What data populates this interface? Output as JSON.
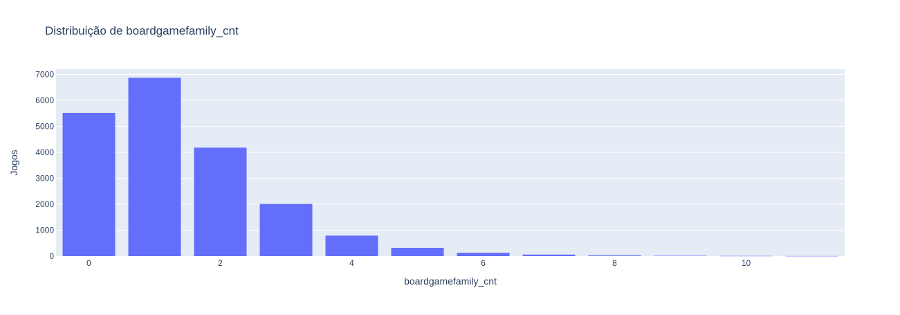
{
  "chart_data": {
    "type": "bar",
    "title": "Distribuição de boardgamefamily_cnt",
    "xlabel": "boardgamefamily_cnt",
    "ylabel": "Jogos",
    "categories": [
      0,
      1,
      2,
      3,
      4,
      5,
      6,
      7,
      8,
      9,
      10,
      11
    ],
    "values": [
      5520,
      6870,
      4180,
      2010,
      790,
      320,
      130,
      60,
      30,
      15,
      8,
      4
    ],
    "xlim": [
      -0.5,
      11.5
    ],
    "ylim": [
      0,
      7200
    ],
    "x_ticks": [
      0,
      2,
      4,
      6,
      8,
      10
    ],
    "y_ticks": [
      0,
      1000,
      2000,
      3000,
      4000,
      5000,
      6000,
      7000
    ],
    "grid": true,
    "bar_color": "#636efa",
    "plot_bgcolor": "#e5ecf6",
    "text_color": "#2a3f5f"
  }
}
